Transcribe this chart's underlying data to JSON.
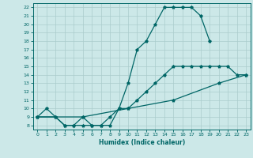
{
  "xlabel": "Humidex (Indice chaleur)",
  "bg_color": "#cce8e8",
  "grid_color": "#aacccc",
  "line_color": "#006666",
  "xlim": [
    -0.5,
    23.5
  ],
  "ylim": [
    7.5,
    22.5
  ],
  "xticks": [
    0,
    1,
    2,
    3,
    4,
    5,
    6,
    7,
    8,
    9,
    10,
    11,
    12,
    13,
    14,
    15,
    16,
    17,
    18,
    19,
    20,
    21,
    22,
    23
  ],
  "yticks": [
    8,
    9,
    10,
    11,
    12,
    13,
    14,
    15,
    16,
    17,
    18,
    19,
    20,
    21,
    22
  ],
  "line1_x": [
    0,
    1,
    2,
    3,
    4,
    5,
    6,
    7,
    8,
    9,
    10,
    11,
    12,
    13,
    14,
    15,
    16,
    17,
    18,
    19
  ],
  "line1_y": [
    9,
    10,
    9,
    8,
    8,
    9,
    8,
    8,
    9,
    10,
    13,
    17,
    18,
    20,
    22,
    22,
    22,
    22,
    21,
    18
  ],
  "line2_x": [
    0,
    2,
    3,
    4,
    5,
    6,
    7,
    8,
    9,
    10,
    11,
    12,
    13,
    14,
    15,
    16,
    17,
    18,
    19,
    20,
    21,
    22,
    23
  ],
  "line2_y": [
    9,
    9,
    8,
    8,
    8,
    8,
    8,
    8,
    10,
    10,
    11,
    12,
    13,
    14,
    15,
    15,
    15,
    15,
    15,
    15,
    15,
    14,
    14
  ],
  "line3_x": [
    0,
    5,
    10,
    15,
    20,
    23
  ],
  "line3_y": [
    9,
    9,
    10,
    11,
    13,
    14
  ]
}
